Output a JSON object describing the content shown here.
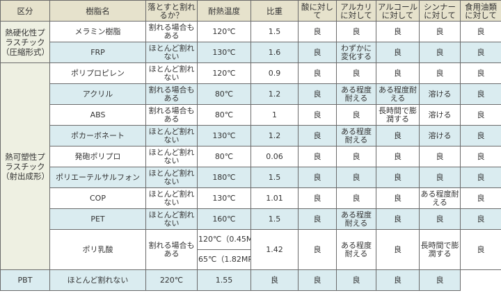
{
  "headers": [
    "区分",
    "樹脂名",
    "落とすと割れるか？",
    "耐熱温度",
    "比重",
    "酸に対して",
    "アルカリに対して",
    "アルコールに対して",
    "シンナーに対して",
    "食用油類に対して"
  ],
  "categories": [
    "熱硬化性プラスチック（圧縮形式）",
    "熱可塑性プラスチック（射出成形）"
  ],
  "rows": [
    {
      "name": "メラミン樹脂",
      "drop": "割れる場合もある",
      "heat": "120℃",
      "sg": "1.5",
      "acid": "良",
      "alkali": "良",
      "alcohol": "良",
      "thinner": "良",
      "oil": "良"
    },
    {
      "name": "FRP",
      "drop": "ほとんど割れない",
      "heat": "130℃",
      "sg": "1.6",
      "acid": "良",
      "alkali": "わずかに変化する",
      "alcohol": "良",
      "thinner": "良",
      "oil": "良"
    },
    {
      "name": "ポリプロピレン",
      "drop": "ほとんど割れない",
      "heat": "120℃",
      "sg": "0.9",
      "acid": "良",
      "alkali": "良",
      "alcohol": "良",
      "thinner": "良",
      "oil": "良"
    },
    {
      "name": "アクリル",
      "drop": "割れる場合もある",
      "heat": "80℃",
      "sg": "1.2",
      "acid": "良",
      "alkali": "ある程度耐える",
      "alcohol": "ある程度耐える",
      "thinner": "溶ける",
      "oil": "良"
    },
    {
      "name": "ABS",
      "drop": "割れる場合もある",
      "heat": "80℃",
      "sg": "1",
      "acid": "良",
      "alkali": "良",
      "alcohol": "長時間で膨潤する",
      "thinner": "溶ける",
      "oil": "良"
    },
    {
      "name": "ポカーボネート",
      "drop": "ほとんど割れない",
      "heat": "130℃",
      "sg": "1.2",
      "acid": "良",
      "alkali": "ある程度耐える",
      "alcohol": "良",
      "thinner": "溶ける",
      "oil": "良"
    },
    {
      "name": "発砲ポリプロ",
      "drop": "ほとんど割れない",
      "heat": "80℃",
      "sg": "0.06",
      "acid": "良",
      "alkali": "良",
      "alcohol": "良",
      "thinner": "良",
      "oil": "良"
    },
    {
      "name": "ポリエーテルサルフォン",
      "drop": "ほとんど割れない",
      "heat": "180℃",
      "sg": "1.5",
      "acid": "良",
      "alkali": "良",
      "alcohol": "良",
      "thinner": "良",
      "oil": "良"
    },
    {
      "name": "COP",
      "drop": "ほとんど割れない",
      "heat": "130℃",
      "sg": "1.01",
      "acid": "良",
      "alkali": "良",
      "alcohol": "良",
      "thinner": "ある程度耐える",
      "oil": "良"
    },
    {
      "name": "PET",
      "drop": "ほとんど割れない",
      "heat": "160℃",
      "sg": "1.5",
      "acid": "良",
      "alkali": "ある程度耐える",
      "alcohol": "良",
      "thinner": "良",
      "oil": "良"
    },
    {
      "name": "ポリ乳酸",
      "drop": "割れる場合もある",
      "heat": "120℃（0.45MPa）",
      "heat2": "65℃（1.82MPa）",
      "sg": "1.42",
      "acid": "良",
      "alkali": "ある程度耐える",
      "alcohol": "良",
      "thinner": "長時間で膨潤する",
      "oil": "良"
    },
    {
      "name": "PBT",
      "drop": "ほとんど割れない",
      "heat": "220℃",
      "sg": "1.55",
      "acid": "良",
      "alkali": "良",
      "alcohol": "良",
      "thinner": "良",
      "oil": "良"
    }
  ],
  "colors": {
    "header": "#e6e2cc",
    "category": "#eef0e2",
    "row_alt": "#daecf0",
    "border": "#6a6a6a"
  }
}
